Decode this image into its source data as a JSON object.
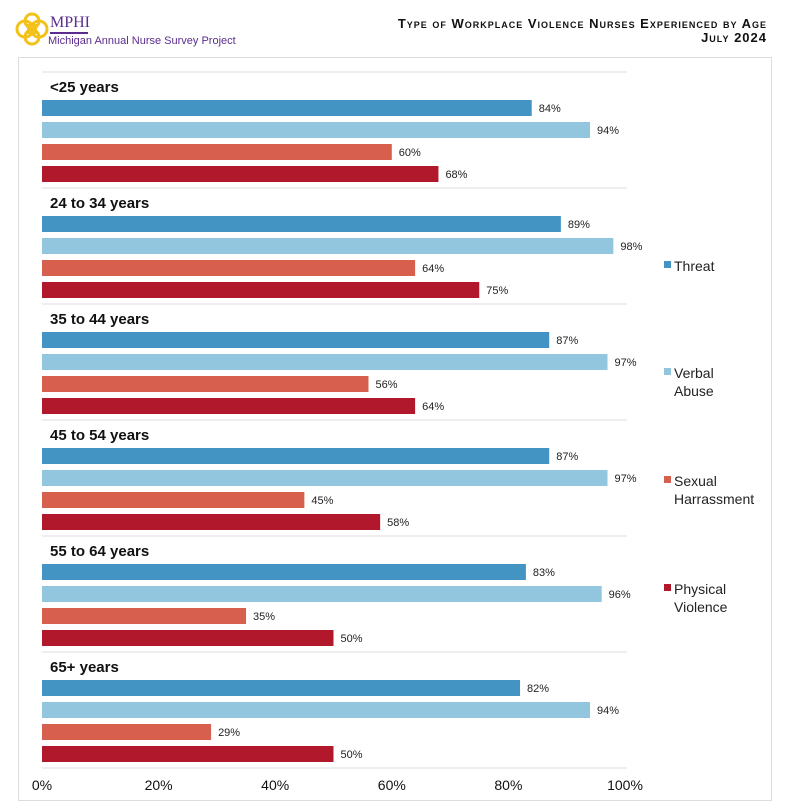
{
  "header": {
    "logo_text": "MPHI",
    "logo_subtitle": "Michigan Annual Nurse Survey Project",
    "title_line1": "Type of Workplace Violence Nurses Experienced by Age",
    "title_line2": "July 2024"
  },
  "chart_data": {
    "type": "bar",
    "orientation": "horizontal",
    "categories": [
      "<25 years",
      "24 to 34 years",
      "35 to 44 years",
      "45 to 54 years",
      "55 to 64 years",
      "65+ years"
    ],
    "series": [
      {
        "name": "Threat",
        "color": "#4393c3",
        "values": [
          84,
          89,
          87,
          87,
          83,
          82
        ]
      },
      {
        "name": "Verbal Abuse",
        "color": "#92c5de",
        "values": [
          94,
          98,
          97,
          97,
          96,
          94
        ]
      },
      {
        "name": "Sexual Harrassment",
        "color": "#d6604d",
        "values": [
          60,
          64,
          56,
          45,
          35,
          29
        ]
      },
      {
        "name": "Physical Violence",
        "color": "#b2182b",
        "values": [
          68,
          75,
          64,
          58,
          50,
          50
        ]
      }
    ],
    "xlim": [
      0,
      100
    ],
    "xticks": [
      "0%",
      "20%",
      "40%",
      "60%",
      "80%",
      "100%"
    ],
    "legend_position": "right",
    "grid": false
  }
}
